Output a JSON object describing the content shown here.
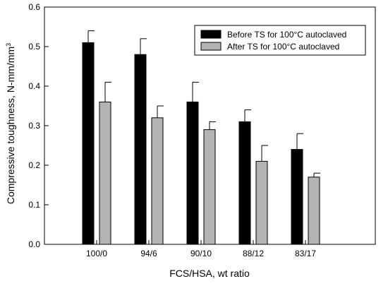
{
  "chart_data": {
    "type": "bar",
    "xlabel": "FCS/HSA, wt ratio",
    "ylabel": "Compressive toughness, N-mm/mm3",
    "ylim": [
      0,
      0.6
    ],
    "yticks": [
      "0.0",
      "0.1",
      "0.2",
      "0.3",
      "0.4",
      "0.5",
      "0.6"
    ],
    "categories": [
      "100/0",
      "94/6",
      "90/10",
      "88/12",
      "83/17"
    ],
    "series": [
      {
        "name": "Before TS for 100°C autoclaved",
        "color": "#000000",
        "values": [
          0.51,
          0.48,
          0.36,
          0.31,
          0.24
        ],
        "errors": [
          0.03,
          0.04,
          0.05,
          0.03,
          0.04
        ]
      },
      {
        "name": "After TS for 100°C autoclaved",
        "color": "#b4b4b4",
        "values": [
          0.36,
          0.32,
          0.29,
          0.21,
          0.17
        ],
        "errors": [
          0.05,
          0.03,
          0.02,
          0.04,
          0.01
        ]
      }
    ],
    "legend_position": "top-right",
    "grid": false
  }
}
